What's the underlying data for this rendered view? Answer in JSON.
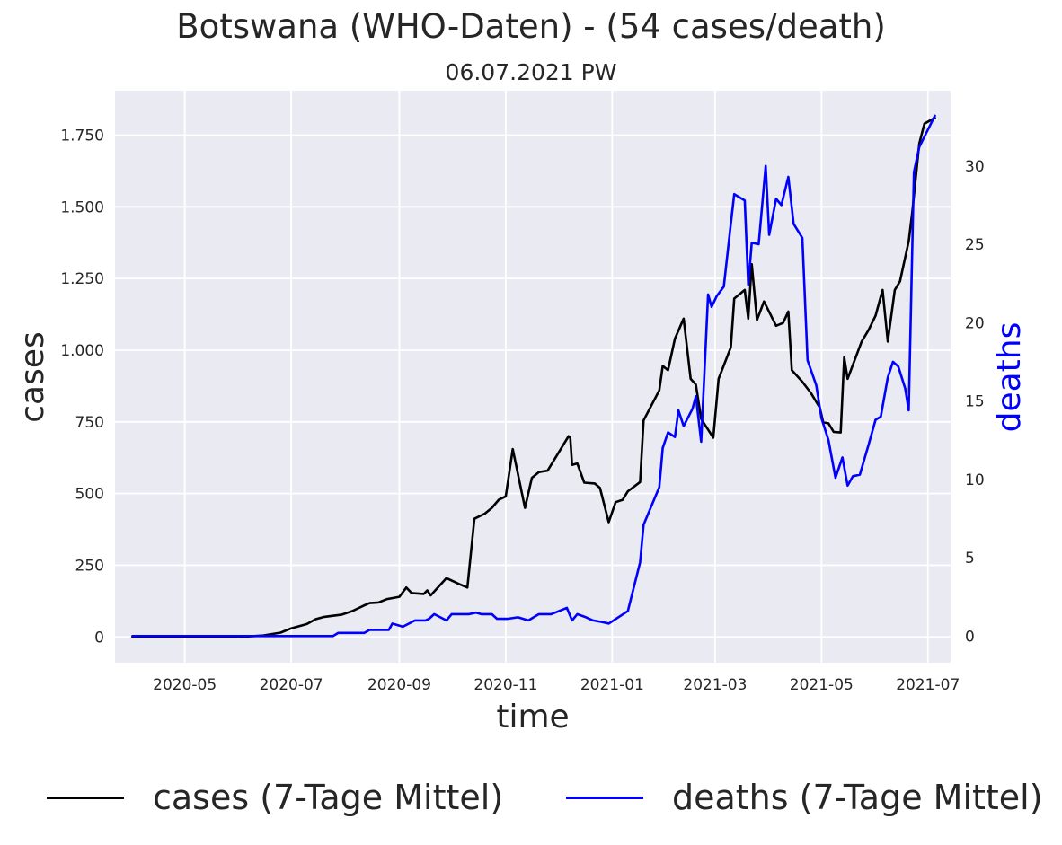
{
  "title": "Botswana (WHO-Daten) - (54 cases/death)",
  "subtitle": "06.07.2021 PW",
  "chart_data": {
    "type": "line",
    "xlabel": "time",
    "ylabel_left": "cases",
    "ylabel_right": "deaths",
    "x_range": [
      "2020-03-22",
      "2021-07-14"
    ],
    "ylim_left": [
      -90,
      1905
    ],
    "ylim_right": [
      -1.7,
      34.8
    ],
    "x_ticks": [
      "2020-05-01",
      "2020-07-01",
      "2020-09-01",
      "2020-11-01",
      "2021-01-01",
      "2021-03-01",
      "2021-05-01",
      "2021-07-01"
    ],
    "x_tick_labels": [
      "2020-05",
      "2020-07",
      "2020-09",
      "2020-11",
      "2021-01",
      "2021-03",
      "2021-05",
      "2021-07"
    ],
    "y_ticks_left": [
      0,
      250,
      500,
      750,
      1000,
      1250,
      1500,
      1750
    ],
    "y_tick_labels_left": [
      "0",
      "250",
      "500",
      "750",
      "1.000",
      "1.250",
      "1.500",
      "1.750"
    ],
    "y_ticks_right": [
      0,
      5,
      10,
      15,
      20,
      25,
      30
    ],
    "y_tick_labels_right": [
      "0",
      "5",
      "10",
      "15",
      "20",
      "25",
      "30"
    ],
    "grid": true,
    "legend_position": "bottom",
    "series": [
      {
        "name": "cases (7-Tage Mittel)",
        "axis": "left",
        "color": "#000000",
        "points": [
          [
            "2020-04-01",
            0
          ],
          [
            "2020-05-01",
            0
          ],
          [
            "2020-06-01",
            0
          ],
          [
            "2020-06-15",
            5
          ],
          [
            "2020-06-25",
            15
          ],
          [
            "2020-07-01",
            30
          ],
          [
            "2020-07-10",
            45
          ],
          [
            "2020-07-15",
            62
          ],
          [
            "2020-07-20",
            70
          ],
          [
            "2020-07-30",
            78
          ],
          [
            "2020-08-05",
            90
          ],
          [
            "2020-08-12",
            110
          ],
          [
            "2020-08-15",
            118
          ],
          [
            "2020-08-20",
            120
          ],
          [
            "2020-08-25",
            132
          ],
          [
            "2020-09-01",
            140
          ],
          [
            "2020-09-05",
            172
          ],
          [
            "2020-09-08",
            153
          ],
          [
            "2020-09-15",
            150
          ],
          [
            "2020-09-17",
            162
          ],
          [
            "2020-09-19",
            145
          ],
          [
            "2020-09-28",
            205
          ],
          [
            "2020-10-05",
            185
          ],
          [
            "2020-10-10",
            172
          ],
          [
            "2020-10-14",
            412
          ],
          [
            "2020-10-20",
            430
          ],
          [
            "2020-10-24",
            450
          ],
          [
            "2020-10-28",
            478
          ],
          [
            "2020-11-01",
            490
          ],
          [
            "2020-11-05",
            655
          ],
          [
            "2020-11-12",
            450
          ],
          [
            "2020-11-16",
            555
          ],
          [
            "2020-11-20",
            575
          ],
          [
            "2020-11-25",
            580
          ],
          [
            "2020-12-07",
            700
          ],
          [
            "2020-12-08",
            695
          ],
          [
            "2020-12-09",
            600
          ],
          [
            "2020-12-12",
            605
          ],
          [
            "2020-12-16",
            538
          ],
          [
            "2020-12-22",
            535
          ],
          [
            "2020-12-25",
            520
          ],
          [
            "2020-12-30",
            400
          ],
          [
            "2021-01-03",
            470
          ],
          [
            "2021-01-07",
            478
          ],
          [
            "2021-01-10",
            508
          ],
          [
            "2021-01-17",
            540
          ],
          [
            "2021-01-19",
            755
          ],
          [
            "2021-01-28",
            860
          ],
          [
            "2021-01-30",
            945
          ],
          [
            "2021-02-02",
            930
          ],
          [
            "2021-02-06",
            1040
          ],
          [
            "2021-02-11",
            1110
          ],
          [
            "2021-02-15",
            900
          ],
          [
            "2021-02-18",
            880
          ],
          [
            "2021-02-21",
            760
          ],
          [
            "2021-02-28",
            695
          ],
          [
            "2021-03-03",
            900
          ],
          [
            "2021-03-10",
            1010
          ],
          [
            "2021-03-12",
            1180
          ],
          [
            "2021-03-18",
            1210
          ],
          [
            "2021-03-20",
            1110
          ],
          [
            "2021-03-22",
            1300
          ],
          [
            "2021-03-25",
            1105
          ],
          [
            "2021-03-29",
            1170
          ],
          [
            "2021-04-05",
            1085
          ],
          [
            "2021-04-09",
            1095
          ],
          [
            "2021-04-12",
            1135
          ],
          [
            "2021-04-14",
            930
          ],
          [
            "2021-04-20",
            890
          ],
          [
            "2021-04-25",
            850
          ],
          [
            "2021-04-30",
            800
          ],
          [
            "2021-05-02",
            748
          ],
          [
            "2021-05-05",
            745
          ],
          [
            "2021-05-08",
            715
          ],
          [
            "2021-05-12",
            713
          ],
          [
            "2021-05-14",
            975
          ],
          [
            "2021-05-16",
            900
          ],
          [
            "2021-05-24",
            1030
          ],
          [
            "2021-05-28",
            1070
          ],
          [
            "2021-06-01",
            1120
          ],
          [
            "2021-06-05",
            1210
          ],
          [
            "2021-06-08",
            1030
          ],
          [
            "2021-06-12",
            1210
          ],
          [
            "2021-06-15",
            1240
          ],
          [
            "2021-06-20",
            1380
          ],
          [
            "2021-06-22",
            1480
          ],
          [
            "2021-06-26",
            1720
          ],
          [
            "2021-06-29",
            1790
          ],
          [
            "2021-07-05",
            1810
          ]
        ]
      },
      {
        "name": "deaths (7-Tage Mittel)",
        "axis": "right",
        "color": "#0000ff",
        "points": [
          [
            "2020-04-01",
            0
          ],
          [
            "2020-04-10",
            0
          ],
          [
            "2020-07-25",
            0
          ],
          [
            "2020-07-28",
            0.2
          ],
          [
            "2020-08-12",
            0.2
          ],
          [
            "2020-08-15",
            0.4
          ],
          [
            "2020-08-26",
            0.4
          ],
          [
            "2020-08-28",
            0.8
          ],
          [
            "2020-09-03",
            0.6
          ],
          [
            "2020-09-10",
            1.0
          ],
          [
            "2020-09-16",
            1.0
          ],
          [
            "2020-09-18",
            1.1
          ],
          [
            "2020-09-21",
            1.4
          ],
          [
            "2020-09-28",
            1.0
          ],
          [
            "2020-10-01",
            1.4
          ],
          [
            "2020-10-11",
            1.4
          ],
          [
            "2020-10-15",
            1.5
          ],
          [
            "2020-10-18",
            1.4
          ],
          [
            "2020-10-24",
            1.4
          ],
          [
            "2020-10-27",
            1.1
          ],
          [
            "2020-11-02",
            1.1
          ],
          [
            "2020-11-08",
            1.2
          ],
          [
            "2020-11-14",
            1.0
          ],
          [
            "2020-11-20",
            1.4
          ],
          [
            "2020-11-27",
            1.4
          ],
          [
            "2020-12-06",
            1.8
          ],
          [
            "2020-12-09",
            1.0
          ],
          [
            "2020-12-12",
            1.4
          ],
          [
            "2020-12-17",
            1.2
          ],
          [
            "2020-12-21",
            1.0
          ],
          [
            "2020-12-26",
            0.9
          ],
          [
            "2020-12-30",
            0.8
          ],
          [
            "2021-01-10",
            1.6
          ],
          [
            "2021-01-17",
            4.7
          ],
          [
            "2021-01-19",
            7.1
          ],
          [
            "2021-01-28",
            9.5
          ],
          [
            "2021-01-30",
            12.0
          ],
          [
            "2021-02-02",
            13.0
          ],
          [
            "2021-02-06",
            12.7
          ],
          [
            "2021-02-08",
            14.4
          ],
          [
            "2021-02-11",
            13.4
          ],
          [
            "2021-02-16",
            14.5
          ],
          [
            "2021-02-18",
            15.3
          ],
          [
            "2021-02-21",
            12.4
          ],
          [
            "2021-02-25",
            21.8
          ],
          [
            "2021-02-27",
            21.0
          ],
          [
            "2021-03-02",
            21.7
          ],
          [
            "2021-03-06",
            22.3
          ],
          [
            "2021-03-10",
            26.3
          ],
          [
            "2021-03-12",
            28.2
          ],
          [
            "2021-03-18",
            27.8
          ],
          [
            "2021-03-20",
            22.4
          ],
          [
            "2021-03-22",
            25.1
          ],
          [
            "2021-03-26",
            25.0
          ],
          [
            "2021-03-30",
            30.0
          ],
          [
            "2021-04-01",
            25.6
          ],
          [
            "2021-04-05",
            27.9
          ],
          [
            "2021-04-08",
            27.5
          ],
          [
            "2021-04-12",
            29.3
          ],
          [
            "2021-04-15",
            26.3
          ],
          [
            "2021-04-20",
            25.4
          ],
          [
            "2021-04-23",
            17.6
          ],
          [
            "2021-04-28",
            16.0
          ],
          [
            "2021-05-01",
            13.9
          ],
          [
            "2021-05-05",
            12.5
          ],
          [
            "2021-05-09",
            10.1
          ],
          [
            "2021-05-13",
            11.4
          ],
          [
            "2021-05-16",
            9.6
          ],
          [
            "2021-05-19",
            10.2
          ],
          [
            "2021-05-23",
            10.3
          ],
          [
            "2021-05-28",
            12.2
          ],
          [
            "2021-06-01",
            13.8
          ],
          [
            "2021-06-04",
            14.0
          ],
          [
            "2021-06-08",
            16.5
          ],
          [
            "2021-06-11",
            17.5
          ],
          [
            "2021-06-14",
            17.2
          ],
          [
            "2021-06-18",
            15.8
          ],
          [
            "2021-06-20",
            14.4
          ],
          [
            "2021-06-23",
            29.6
          ],
          [
            "2021-06-26",
            31.2
          ],
          [
            "2021-07-05",
            33.2
          ]
        ]
      }
    ]
  }
}
